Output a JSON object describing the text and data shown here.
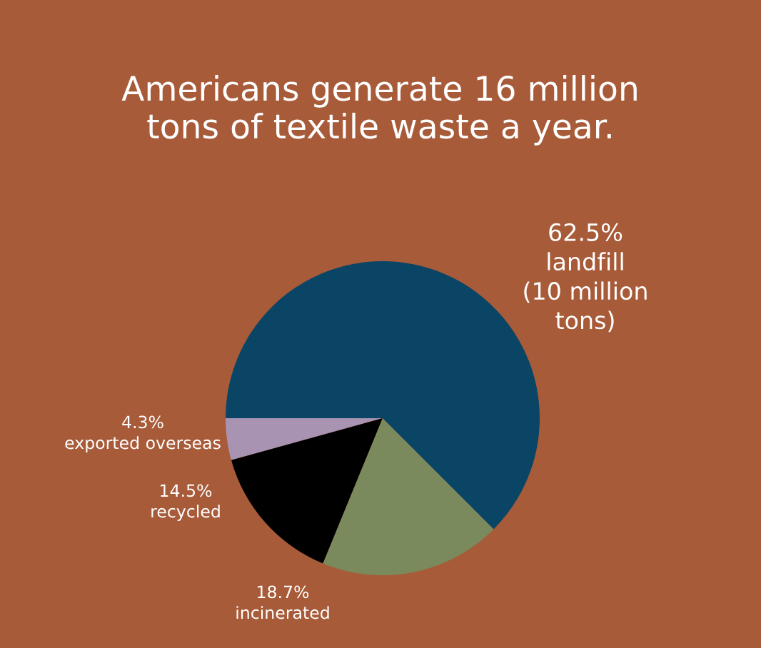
{
  "chart_data": {
    "type": "pie",
    "title": "Americans generate 16 million\ntons of textile waste a year.",
    "categories": [
      "exported overseas",
      "recycled",
      "incinerated",
      "landfill\n(10 million\ntons)"
    ],
    "values": [
      4.3,
      14.5,
      18.7,
      62.5
    ],
    "value_labels": [
      "4.3%",
      "14.5%",
      "18.7%",
      "62.5%"
    ],
    "colors": [
      "#a894b2",
      "#000000",
      "#7b8a5c",
      "#0b4566"
    ]
  }
}
